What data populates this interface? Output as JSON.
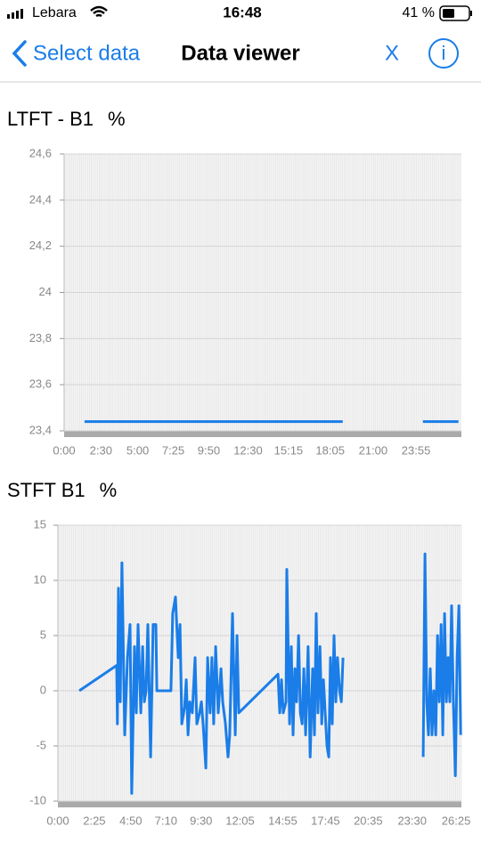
{
  "status_bar": {
    "carrier": "Lebara",
    "time": "16:48",
    "battery": "41 %"
  },
  "nav": {
    "back": "Select data",
    "title": "Data viewer",
    "close": "X",
    "info": "i"
  },
  "chart_data": [
    {
      "type": "line",
      "title": "LTFT - B1",
      "unit": "%",
      "color": "#1a7de8",
      "grid": true,
      "xlim": [
        0,
        1620
      ],
      "ylim": [
        23.4,
        24.6
      ],
      "xticks": [
        {
          "value": 0,
          "label": "0:00"
        },
        {
          "value": 150,
          "label": "2:30"
        },
        {
          "value": 300,
          "label": "5:00"
        },
        {
          "value": 445,
          "label": "7:25"
        },
        {
          "value": 590,
          "label": "9:50"
        },
        {
          "value": 750,
          "label": "12:30"
        },
        {
          "value": 915,
          "label": "15:15"
        },
        {
          "value": 1085,
          "label": "18:05"
        },
        {
          "value": 1260,
          "label": "21:00"
        },
        {
          "value": 1435,
          "label": "23:55"
        }
      ],
      "yticks": [
        {
          "value": 23.4,
          "label": "23,4"
        },
        {
          "value": 23.6,
          "label": "23,6"
        },
        {
          "value": 23.8,
          "label": "23,8"
        },
        24,
        {
          "value": 24.2,
          "label": "24,2"
        },
        {
          "value": 24.4,
          "label": "24,4"
        },
        {
          "value": 24.6,
          "label": "24,6"
        }
      ],
      "x": [
        83,
        1136,
        null,
        1463,
        1608
      ],
      "values": [
        23.44,
        23.44,
        null,
        23.44,
        23.44
      ]
    },
    {
      "type": "line",
      "title": "STFT B1",
      "unit": "%",
      "color": "#1a7de8",
      "grid": true,
      "xlim": [
        0,
        1606
      ],
      "ylim": [
        -10,
        15
      ],
      "xticks": [
        {
          "value": 0,
          "label": "0:00"
        },
        {
          "value": 145,
          "label": "2:25"
        },
        {
          "value": 290,
          "label": "4:50"
        },
        {
          "value": 430,
          "label": "7:10"
        },
        {
          "value": 570,
          "label": "9:30"
        },
        {
          "value": 725,
          "label": "12:05"
        },
        {
          "value": 895,
          "label": "14:55"
        },
        {
          "value": 1065,
          "label": "17:45"
        },
        {
          "value": 1235,
          "label": "20:35"
        },
        {
          "value": 1410,
          "label": "23:30"
        },
        {
          "value": 1585,
          "label": "26:25"
        }
      ],
      "yticks": [
        -10,
        -5,
        0,
        5,
        10,
        15
      ],
      "x": [
        85,
        234,
        237,
        241,
        248,
        255,
        266,
        277,
        287,
        294,
        305,
        312,
        319,
        330,
        337,
        344,
        351,
        358,
        369,
        379,
        390,
        394,
        450,
        457,
        468,
        479,
        486,
        493,
        504,
        511,
        518,
        525,
        535,
        546,
        553,
        564,
        571,
        578,
        589,
        596,
        606,
        613,
        620,
        628,
        638,
        649,
        656,
        667,
        677,
        684,
        695,
        706,
        713,
        720,
        876,
        883,
        890,
        897,
        908,
        911,
        922,
        929,
        936,
        943,
        950,
        958,
        965,
        972,
        979,
        986,
        996,
        1004,
        1014,
        1021,
        1028,
        1035,
        1043,
        1050,
        1057,
        1064,
        1071,
        1078,
        1085,
        1092,
        1099,
        1106,
        1113,
        1121,
        1128,
        1135,
        null,
        1454,
        1461,
        1468,
        1475,
        1482,
        1489,
        1496,
        1504,
        1511,
        1518,
        1525,
        1532,
        1539,
        1546,
        1553,
        1560,
        1567,
        1574,
        1582,
        1589,
        1596,
        1603
      ],
      "values": [
        0,
        2.3,
        -3,
        9.3,
        -1,
        11.6,
        -4,
        3,
        6,
        -9.3,
        4,
        -2,
        6,
        -2,
        4,
        -1,
        0,
        6,
        -6,
        6,
        6,
        0,
        0,
        7,
        8.5,
        3,
        6,
        -3,
        -1.5,
        1,
        -4,
        -1,
        -2,
        3,
        -3,
        -2,
        -1,
        -3,
        -7,
        3,
        -2,
        3,
        -3,
        4,
        -2,
        2,
        -1,
        -3,
        -6,
        -4,
        7,
        -4,
        5,
        -2,
        1.5,
        -2,
        1,
        -2,
        -1,
        11,
        -3,
        4,
        -4,
        2,
        -1,
        5,
        -2,
        -3,
        2,
        -4,
        4,
        -6,
        2,
        -4,
        7,
        -2,
        4,
        -3,
        1,
        -2,
        -5,
        -6,
        3,
        -3,
        5,
        -1,
        3,
        0,
        -1,
        3,
        null,
        -6,
        12.4,
        -1,
        -4,
        2,
        -4,
        0,
        -4,
        5,
        -1,
        6,
        -4,
        7,
        -1,
        3,
        -1,
        7.7,
        -1,
        -7.7,
        3,
        7.7,
        -4
      ]
    }
  ]
}
